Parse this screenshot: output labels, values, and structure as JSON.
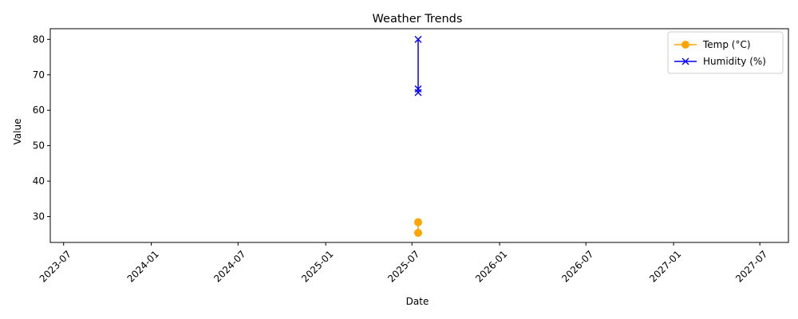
{
  "chart_data": {
    "type": "line",
    "title": "Weather Trends",
    "xlabel": "Date",
    "ylabel": "Value",
    "x_axis": {
      "scale": "date",
      "range": [
        "2023-06-03",
        "2027-08-30"
      ],
      "ticks": [
        "2023-07-01",
        "2024-01-01",
        "2024-07-01",
        "2025-01-01",
        "2025-07-01",
        "2026-01-01",
        "2026-07-01",
        "2027-01-01",
        "2027-07-01"
      ],
      "tick_labels": [
        "2023-07",
        "2024-01",
        "2024-07",
        "2025-01",
        "2025-07",
        "2026-01",
        "2026-07",
        "2027-01",
        "2027-07"
      ],
      "tick_label_rotation": 45
    },
    "y_axis": {
      "range": [
        22.7,
        83.0
      ],
      "ticks": [
        30,
        40,
        50,
        60,
        70,
        80
      ],
      "tick_labels": [
        "30",
        "40",
        "50",
        "60",
        "70",
        "80"
      ]
    },
    "grid": false,
    "legend_position": "top-right",
    "series": [
      {
        "name": "Temp (°C)",
        "color": "#ffa500",
        "marker": "circle",
        "points": [
          {
            "x": "2025-07-14",
            "y": 28.4
          },
          {
            "x": "2025-07-14",
            "y": 25.4
          }
        ]
      },
      {
        "name": "Humidity (%)",
        "color": "#0000ff",
        "marker": "x",
        "points": [
          {
            "x": "2025-07-14",
            "y": 80
          },
          {
            "x": "2025-07-14",
            "y": 66
          },
          {
            "x": "2025-07-14",
            "y": 65
          }
        ]
      }
    ]
  }
}
